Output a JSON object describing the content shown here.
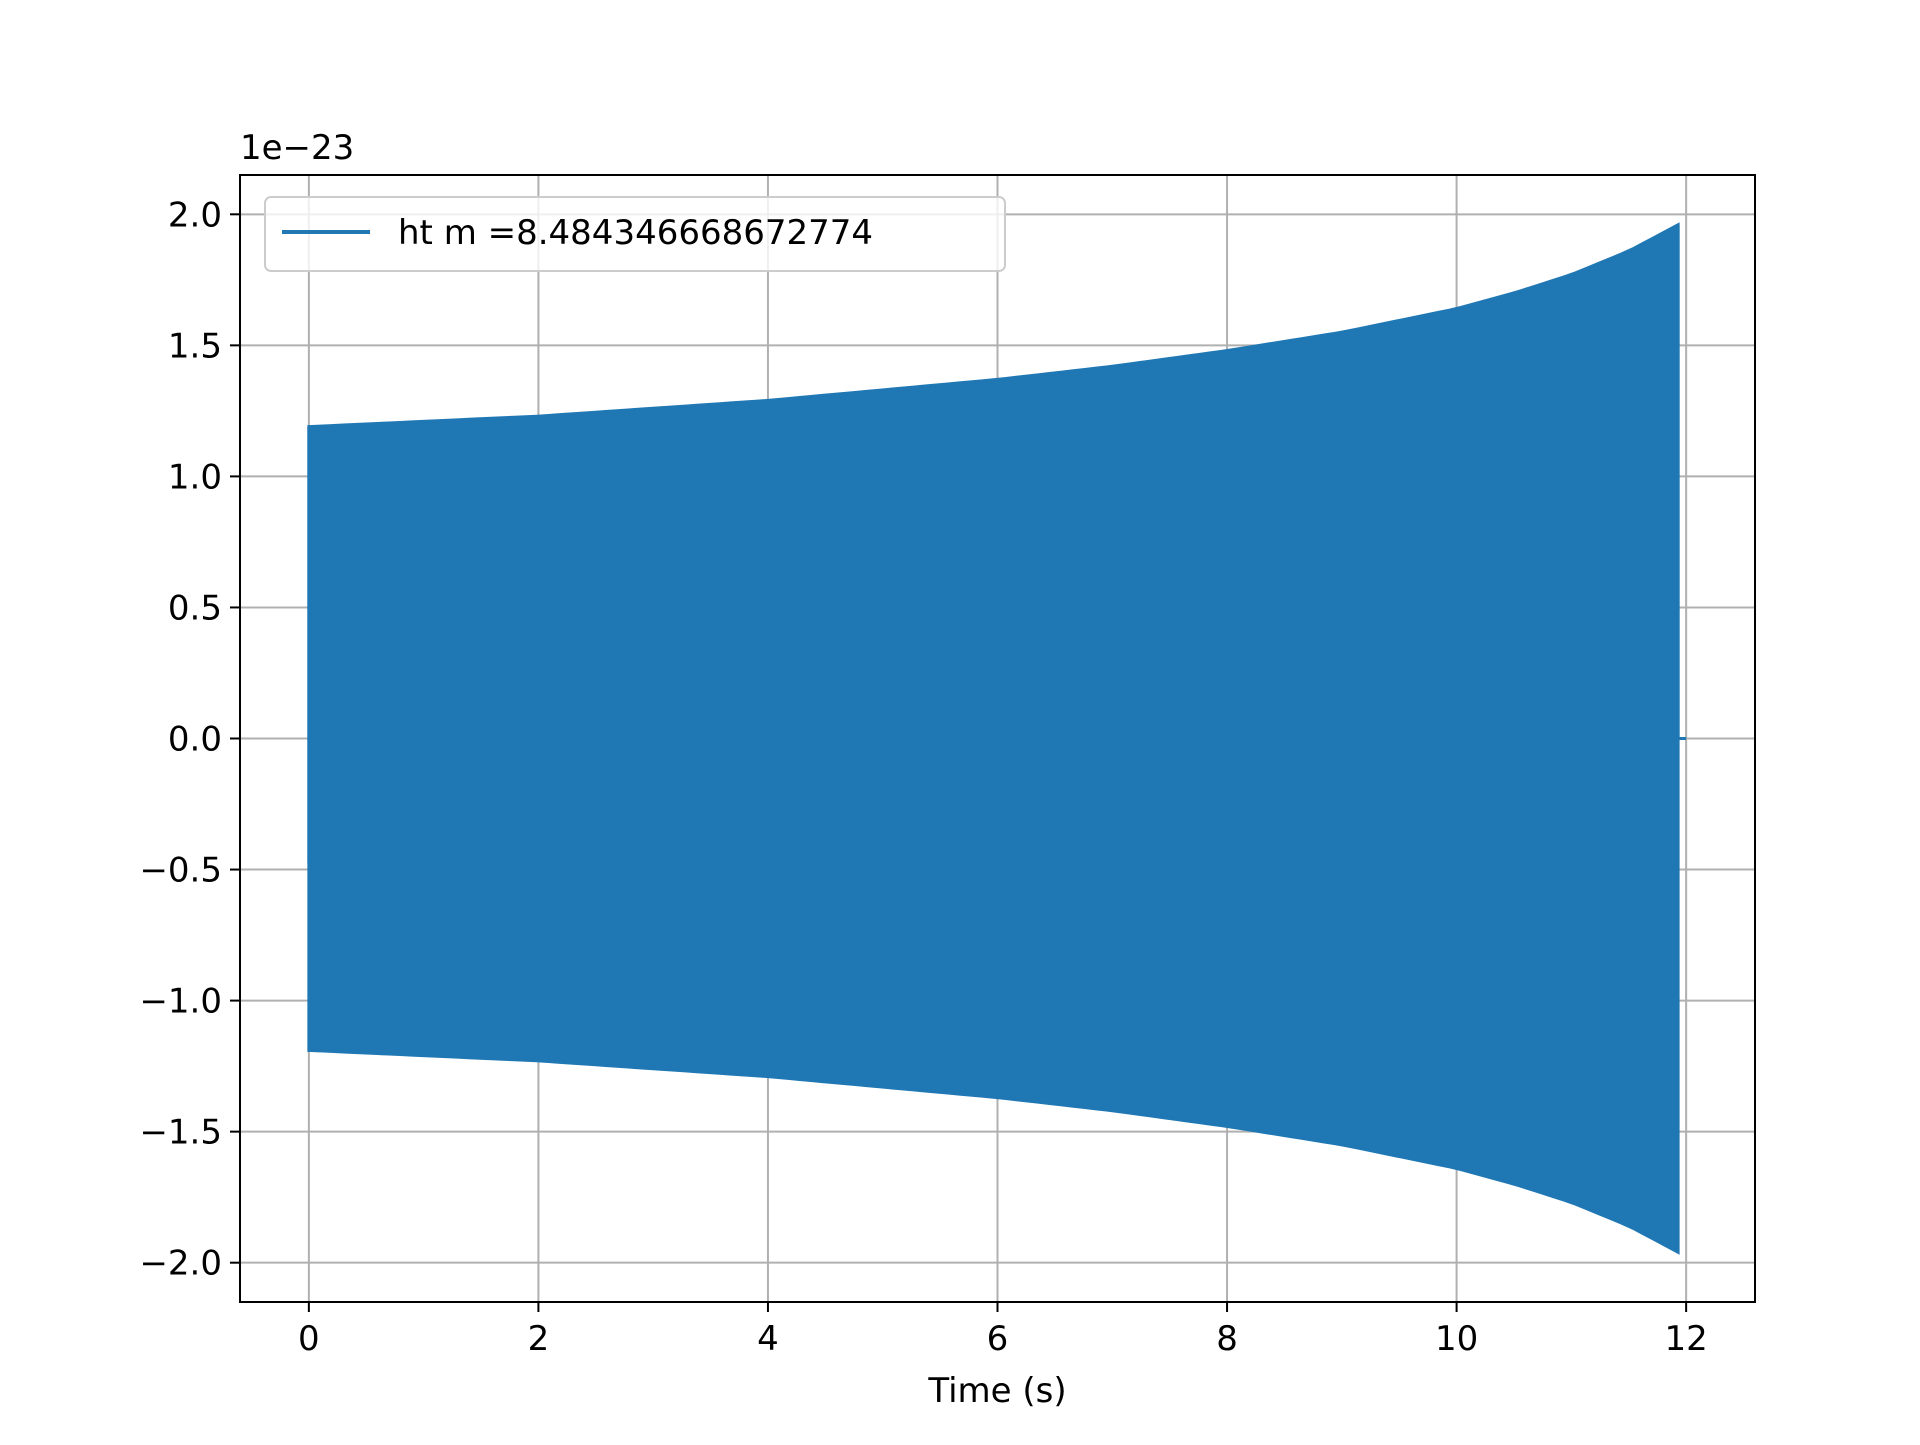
{
  "chart_data": {
    "type": "line",
    "title": "",
    "xlabel": "Time (s)",
    "ylabel": "",
    "y_offset_label": "1e−23",
    "xlim": [
      -0.6,
      12.6
    ],
    "ylim": [
      -2.15,
      2.15
    ],
    "xticks": [
      0,
      2,
      4,
      6,
      8,
      10,
      12
    ],
    "xtick_labels": [
      "0",
      "2",
      "4",
      "6",
      "8",
      "10",
      "12"
    ],
    "yticks": [
      2.0,
      1.5,
      1.0,
      0.5,
      0.0,
      -0.5,
      -1.0,
      -1.5,
      -2.0
    ],
    "ytick_labels": [
      "2.0",
      "1.5",
      "1.0",
      "0.5",
      "0.0",
      "−0.5",
      "−1.0",
      "−1.5",
      "−2.0"
    ],
    "grid": true,
    "legend_position": "top-left",
    "series_color": "#1f77b4",
    "series": [
      {
        "name": "ht m =8.484346668672774",
        "envelope": {
          "t": [
            0,
            1,
            2,
            3,
            4,
            5,
            6,
            7,
            8,
            9,
            10,
            10.5,
            11,
            11.5,
            11.93
          ],
          "amplitude": [
            1.19,
            1.21,
            1.23,
            1.26,
            1.29,
            1.33,
            1.37,
            1.42,
            1.48,
            1.55,
            1.64,
            1.7,
            1.77,
            1.86,
            1.96
          ]
        },
        "end_time": 12.0
      }
    ]
  }
}
